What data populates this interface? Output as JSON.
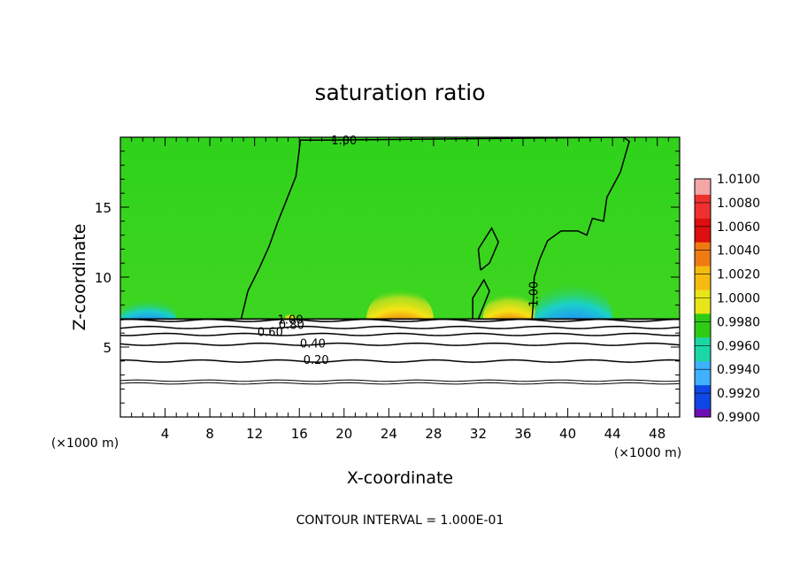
{
  "chart_data": {
    "type": "heatmap",
    "title": "saturation ratio",
    "xlabel": "X-coordinate",
    "ylabel": "Z-coordinate",
    "x_unit": "(×1000 m)",
    "y_unit": "(×1000 m)",
    "xlim": [
      0,
      50
    ],
    "ylim": [
      0,
      20
    ],
    "x_ticks": [
      4,
      8,
      12,
      16,
      20,
      24,
      28,
      32,
      36,
      40,
      44,
      48
    ],
    "y_ticks": [
      5,
      10,
      15
    ],
    "footer": "CONTOUR INTERVAL = 1.000E-01",
    "colorbar": {
      "levels": [
        "1.0100",
        "1.0080",
        "1.0060",
        "1.0040",
        "1.0020",
        "1.0000",
        "0.9980",
        "0.9960",
        "0.9940",
        "0.9920",
        "0.9900"
      ],
      "colors": [
        "#f3a6a6",
        "#ee3030",
        "#dd0f0f",
        "#f07a12",
        "#f5bb10",
        "#e8e51a",
        "#2ecb15",
        "#1bd7a6",
        "#3fb1ff",
        "#0f47e6",
        "#6b0fb4"
      ]
    },
    "contour_labels": [
      {
        "text": "1.00",
        "x": 20.0,
        "y": 19.8
      },
      {
        "text": "1.00",
        "x": 37.3,
        "y": 9.1
      },
      {
        "text": "1.00",
        "x": 15.2,
        "y": 7.0
      },
      {
        "text": "0.80",
        "x": 15.3,
        "y": 6.6
      },
      {
        "text": "0.60",
        "x": 13.4,
        "y": 6.1
      },
      {
        "text": "0.40",
        "x": 17.2,
        "y": 5.3
      },
      {
        "text": "0.20",
        "x": 17.5,
        "y": 4.1
      }
    ],
    "features": [
      {
        "name": "supersaturated-bump",
        "x_center": 25.0,
        "half_width": 3.0,
        "height": 2.2,
        "peak_value": 1.01
      },
      {
        "name": "supersaturated-bump",
        "x_center": 34.8,
        "half_width": 2.4,
        "height": 1.9,
        "peak_value": 1.01
      },
      {
        "name": "supersaturated-bump",
        "x_center": 15.2,
        "half_width": 0.5,
        "height": 0.4,
        "peak_value": 1.008
      },
      {
        "name": "subsaturated-region",
        "x_center": 40.5,
        "half_width": 3.5,
        "height": 2.8,
        "min_value": 0.992
      },
      {
        "name": "subsaturated-region",
        "x_center": 2.5,
        "half_width": 2.5,
        "height": 1.5,
        "min_value": 0.994
      }
    ],
    "cloud_base": 7.0,
    "contour_levels_below_base": [
      0.2,
      0.4,
      0.6,
      0.8,
      1.0
    ]
  }
}
